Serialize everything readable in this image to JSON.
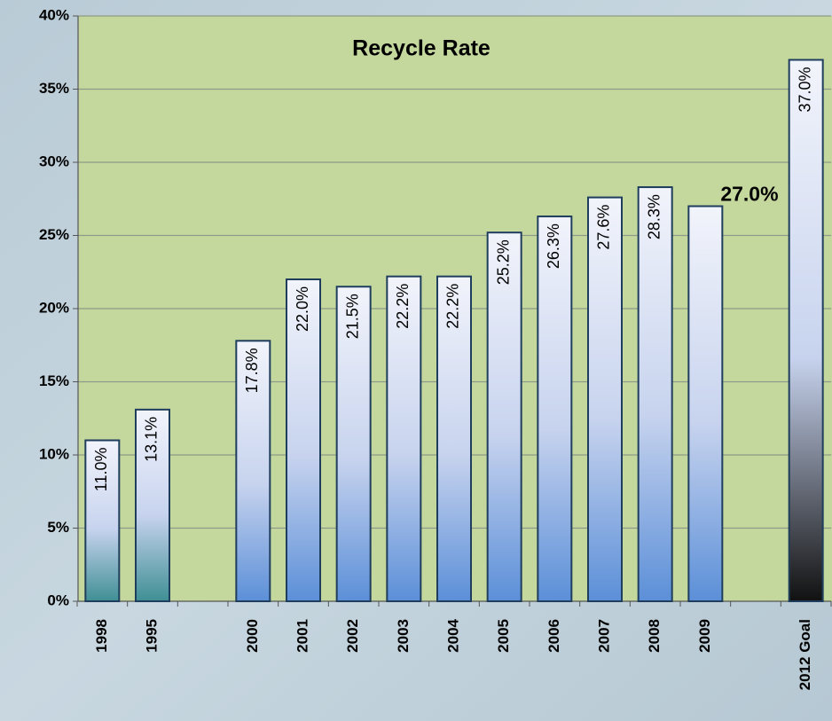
{
  "chart_data": {
    "type": "bar",
    "title": "Recycle Rate",
    "categories": [
      "1998",
      "1995",
      null,
      "2000",
      "2001",
      "2002",
      "2003",
      "2004",
      "2005",
      "2006",
      "2007",
      "2008",
      "2009",
      null,
      "2012 Goal"
    ],
    "values": [
      11.0,
      13.1,
      null,
      17.8,
      22.0,
      21.5,
      22.2,
      22.2,
      25.2,
      26.3,
      27.6,
      28.3,
      27.0,
      null,
      37.0
    ],
    "value_labels": [
      "11.0%",
      "13.1%",
      null,
      "17.8%",
      "22.0%",
      "21.5%",
      "22.2%",
      "22.2%",
      "25.2%",
      "26.3%",
      "27.6%",
      "28.3%",
      "27.0%",
      null,
      "37.0%"
    ],
    "colors": [
      "#3f8f94",
      "#3f8f94",
      null,
      "#5b8fd8",
      "#5b8fd8",
      "#5b8fd8",
      "#5b8fd8",
      "#5b8fd8",
      "#5b8fd8",
      "#5b8fd8",
      "#5b8fd8",
      "#5b8fd8",
      "#5b8fd8",
      null,
      "#111111"
    ],
    "highlight": 12,
    "ylim": [
      0,
      40
    ],
    "yticks": [
      {
        "value": 0,
        "label": "0%"
      },
      {
        "value": 5,
        "label": "5%"
      },
      {
        "value": 10,
        "label": "10%"
      },
      {
        "value": 15,
        "label": "15%"
      },
      {
        "value": 20,
        "label": "20%"
      },
      {
        "value": 25,
        "label": "25%"
      },
      {
        "value": 30,
        "label": "30%"
      },
      {
        "value": 35,
        "label": "35%"
      },
      {
        "value": 40,
        "label": "40%"
      }
    ],
    "grid": true
  }
}
